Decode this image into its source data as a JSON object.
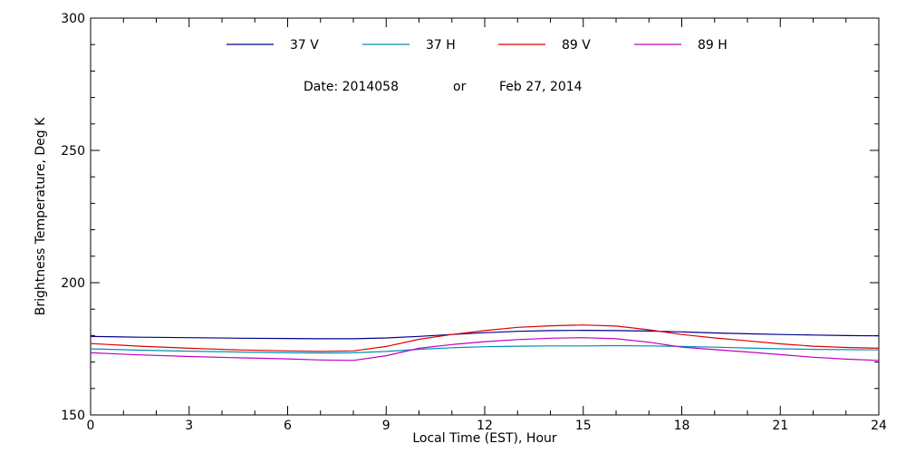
{
  "chart_data": {
    "type": "line",
    "title": "",
    "annotation": {
      "date_label": "Date: 2014058",
      "or_label": "or",
      "date_text": "Feb 27, 2014"
    },
    "xlabel": "Local Time (EST), Hour",
    "ylabel": "Brightness Temperature, Deg K",
    "xlim": [
      0,
      24
    ],
    "ylim": [
      150,
      300
    ],
    "xticks": [
      0,
      3,
      6,
      9,
      12,
      15,
      18,
      21,
      24
    ],
    "yticks": [
      150,
      200,
      250,
      300
    ],
    "x": [
      0,
      1.5,
      3,
      4.5,
      6,
      7,
      8,
      9,
      10,
      11,
      12,
      13,
      14,
      15,
      16,
      17,
      18,
      19,
      20,
      21,
      22,
      23,
      24
    ],
    "series": [
      {
        "name": "37 V",
        "color": "#00008b",
        "values": [
          179.7,
          179.4,
          179.2,
          179.0,
          178.9,
          178.8,
          178.8,
          179.1,
          179.7,
          180.4,
          181.1,
          181.6,
          181.9,
          182.0,
          181.9,
          181.7,
          181.4,
          181.0,
          180.7,
          180.4,
          180.2,
          180.0,
          179.9
        ]
      },
      {
        "name": "37 H",
        "color": "#0090b0",
        "values": [
          175.0,
          174.5,
          174.1,
          173.8,
          173.5,
          173.4,
          173.5,
          174.0,
          174.8,
          175.4,
          175.8,
          176.0,
          176.1,
          176.1,
          176.2,
          176.1,
          175.9,
          175.6,
          175.3,
          175.0,
          174.8,
          174.7,
          174.6
        ]
      },
      {
        "name": "89 V",
        "color": "#e00000",
        "values": [
          177.0,
          176.0,
          175.2,
          174.6,
          174.2,
          174.0,
          174.2,
          175.9,
          178.6,
          180.4,
          181.9,
          183.1,
          183.7,
          184.0,
          183.6,
          182.2,
          180.4,
          179.1,
          178.0,
          176.9,
          176.0,
          175.5,
          175.2
        ]
      },
      {
        "name": "89 H",
        "color": "#c000c0",
        "values": [
          173.5,
          172.7,
          172.1,
          171.6,
          171.2,
          170.8,
          170.6,
          172.4,
          175.2,
          176.6,
          177.7,
          178.5,
          179.0,
          179.2,
          178.8,
          177.5,
          175.6,
          174.7,
          173.8,
          172.8,
          171.8,
          171.1,
          170.6
        ]
      }
    ]
  }
}
